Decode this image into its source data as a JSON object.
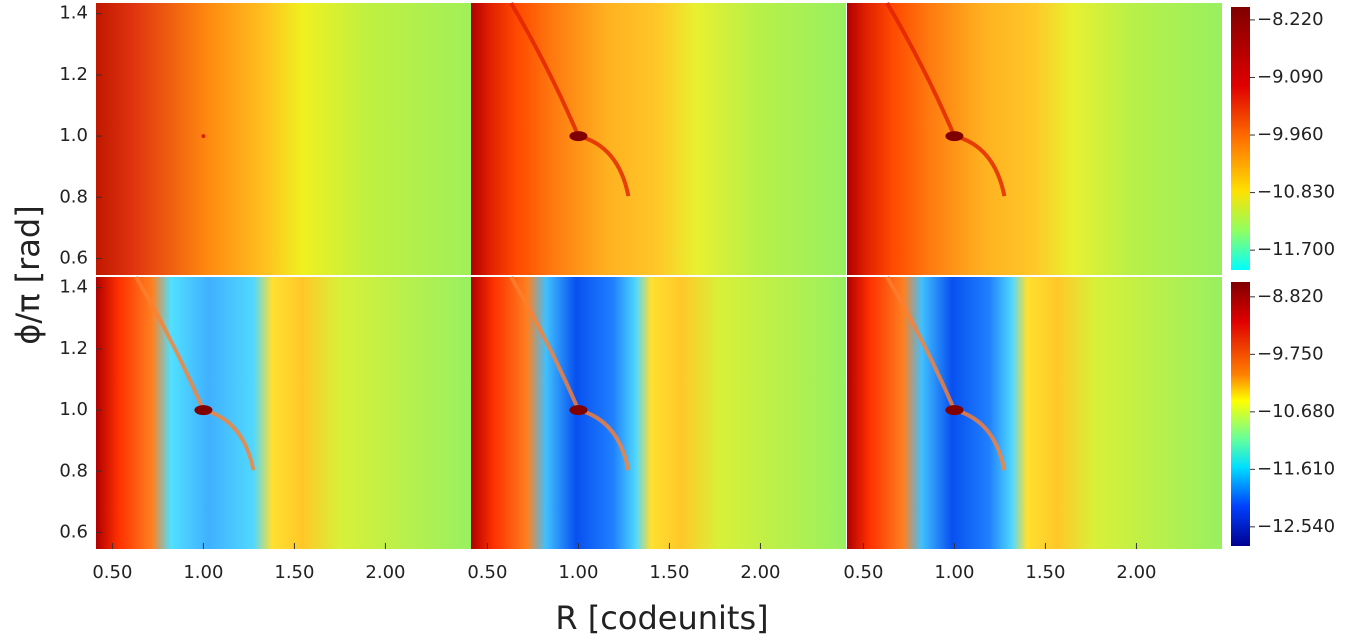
{
  "chart_data": {
    "type": "heatmap",
    "x_label": "R [codeunits]",
    "y_label": "ϕ/π [rad]",
    "xlim": [
      0.41,
      2.47
    ],
    "xticks": [
      {
        "value": 0.5,
        "label": "0.50"
      },
      {
        "value": 1.0,
        "label": "1.00"
      },
      {
        "value": 1.5,
        "label": "1.50"
      },
      {
        "value": 2.0,
        "label": "2.00"
      }
    ],
    "ylim": [
      0.546,
      1.435
    ],
    "yticks": [
      0.6,
      0.8,
      {
        "value": 1.0,
        "label": "1.0"
      },
      1.2,
      1.4
    ],
    "rows": [
      {
        "colorbar": {
          "clim": [
            -12.0,
            -8.025
          ],
          "ticks": [
            {
              "value": -8.22,
              "label": "−8.220"
            },
            {
              "value": -9.09,
              "label": "−9.090"
            },
            {
              "value": -9.96,
              "label": "−9.960"
            },
            {
              "value": -10.83,
              "label": "−10.830"
            },
            {
              "value": -11.7,
              "label": "−11.700"
            }
          ]
        }
      },
      {
        "colorbar": {
          "clim": [
            -12.85,
            -8.58
          ],
          "ticks": [
            {
              "value": -8.82,
              "label": "−8.820"
            },
            {
              "value": -9.75,
              "label": "−9.750"
            },
            {
              "value": -10.68,
              "label": "−10.680"
            },
            {
              "value": -11.61,
              "label": "−11.610"
            },
            {
              "value": -12.54,
              "label": "−12.540"
            }
          ]
        }
      }
    ]
  }
}
